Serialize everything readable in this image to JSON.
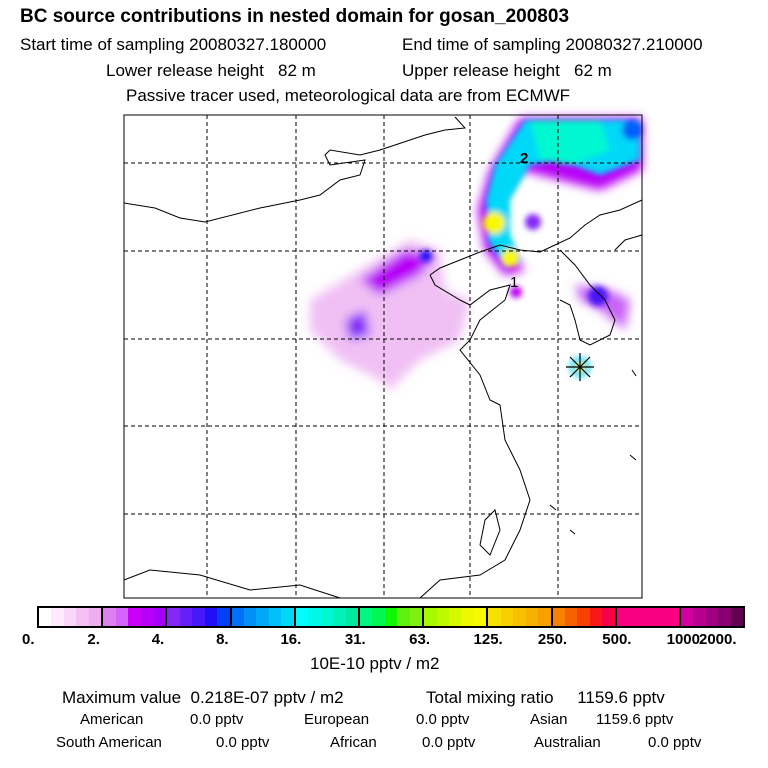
{
  "title": "BC  source contributions in nested domain for gosan_200803",
  "sampling": {
    "start_label": "Start time of sampling",
    "start": "20080327.180000",
    "end_label": "End time of sampling",
    "end": "20080327.210000"
  },
  "release": {
    "lower_label": "Lower release height",
    "lower": "82 m",
    "upper_label": "Upper release height",
    "upper": "62 m"
  },
  "note": "Passive tracer used, meteorological data are from ECMWF",
  "map": {
    "contour_labels": [
      "2",
      "1"
    ]
  },
  "colorbar": {
    "ticks": [
      "0.",
      "2.",
      "4.",
      "8.",
      "16.",
      "31.",
      "63.",
      "125.",
      "250.",
      "500.",
      "1000.",
      "2000."
    ],
    "unit": "10E-10 pptv / m2",
    "colors": [
      [
        "#ffffff",
        "#fdebfd",
        "#f9d6f9",
        "#f4c0f4",
        "#efacef"
      ],
      [
        "#dc80f0",
        "#d464f8",
        "#c800f8",
        "#b800f8",
        "#a400f8"
      ],
      [
        "#8428f8",
        "#6420f8",
        "#4818f8",
        "#2010f8",
        "#0040f8"
      ],
      [
        "#0070f8",
        "#0090f8",
        "#00a8f8",
        "#00c0f8",
        "#00d8f8"
      ],
      [
        "#00fcfc",
        "#00f8e8",
        "#00f8d0",
        "#00f0b8",
        "#00e8a0"
      ],
      [
        "#00f880",
        "#00f850",
        "#10f800",
        "#60f010",
        "#80f010"
      ],
      [
        "#a8f800",
        "#c0f800",
        "#d8f800",
        "#ecf800",
        "#f8f800"
      ],
      [
        "#f8e000",
        "#f8d000",
        "#f8c000",
        "#f8b000",
        "#f8a000"
      ],
      [
        "#f88000",
        "#f86000",
        "#f84000",
        "#f81818",
        "#f80048"
      ],
      [
        "#f80080",
        "#f80080",
        "#f80080",
        "#f80080",
        "#f80080"
      ],
      [
        "#d000a0",
        "#b80090",
        "#a00080",
        "#880070",
        "#600050"
      ]
    ]
  },
  "summary": {
    "max_label": "Maximum value",
    "max": "0.218E-07 pptv / m2",
    "total_label": "Total mixing ratio",
    "total": "1159.6 pptv",
    "regions": [
      {
        "name": "American",
        "value": "0.0 pptv"
      },
      {
        "name": "European",
        "value": "0.0 pptv"
      },
      {
        "name": "Asian",
        "value": "1159.6 pptv"
      },
      {
        "name": "South American",
        "value": "0.0 pptv"
      },
      {
        "name": "African",
        "value": "0.0 pptv"
      },
      {
        "name": "Australian",
        "value": "0.0 pptv"
      }
    ]
  }
}
